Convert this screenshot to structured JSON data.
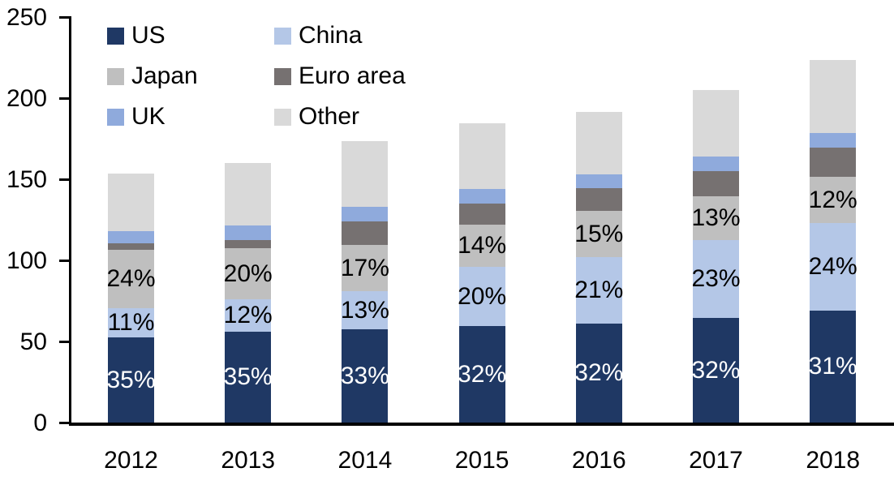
{
  "chart_data": {
    "type": "bar",
    "stacked": true,
    "title": "",
    "background": "#ffffff",
    "axis_color": "#000000",
    "text_color": "#000000",
    "categories": [
      "2012",
      "2013",
      "2014",
      "2015",
      "2016",
      "2017",
      "2018"
    ],
    "series": [
      {
        "name": "US",
        "color": "#1f3864",
        "values": [
          52.5,
          56,
          57.5,
          59.5,
          61,
          64.5,
          69
        ],
        "labels": [
          "35%",
          "35%",
          "33%",
          "32%",
          "32%",
          "32%",
          "31%"
        ],
        "label_color": "#ffffff"
      },
      {
        "name": "China",
        "color": "#b4c7e7",
        "values": [
          18,
          20,
          23.5,
          36.5,
          41,
          48,
          54
        ],
        "labels": [
          "11%",
          "12%",
          "13%",
          "20%",
          "21%",
          "23%",
          "24%"
        ],
        "label_color": "#000000"
      },
      {
        "name": "Japan",
        "color": "#bfbfbf",
        "values": [
          36,
          31.5,
          28.5,
          26,
          28.5,
          27,
          28.5
        ],
        "labels": [
          "24%",
          "20%",
          "17%",
          "14%",
          "15%",
          "13%",
          "12%"
        ],
        "label_color": "#000000"
      },
      {
        "name": "Euro area",
        "color": "#767171",
        "values": [
          4,
          5,
          14.5,
          13,
          14,
          15.5,
          18
        ]
      },
      {
        "name": "UK",
        "color": "#8faadc",
        "values": [
          7.5,
          9,
          9,
          9,
          8.5,
          9,
          9
        ]
      },
      {
        "name": "Other",
        "color": "#d9d9d9",
        "values": [
          35.5,
          38.5,
          40.5,
          40.5,
          38.5,
          41,
          45
        ]
      }
    ],
    "approx_totals": [
      153.5,
      160,
      173.5,
      184.5,
      191.5,
      205,
      223.5
    ],
    "y_axis": {
      "min": 0,
      "max": 250,
      "tick_interval": 50,
      "ticks": [
        0,
        50,
        100,
        150,
        200,
        250
      ]
    },
    "x_axis": {
      "tick_labels": [
        "2012",
        "2013",
        "2014",
        "2015",
        "2016",
        "2017",
        "2018"
      ]
    },
    "legend": {
      "position": "top-left",
      "columns": 2,
      "order": [
        "US",
        "China",
        "Japan",
        "Euro area",
        "UK",
        "Other"
      ]
    },
    "grid": "off"
  }
}
